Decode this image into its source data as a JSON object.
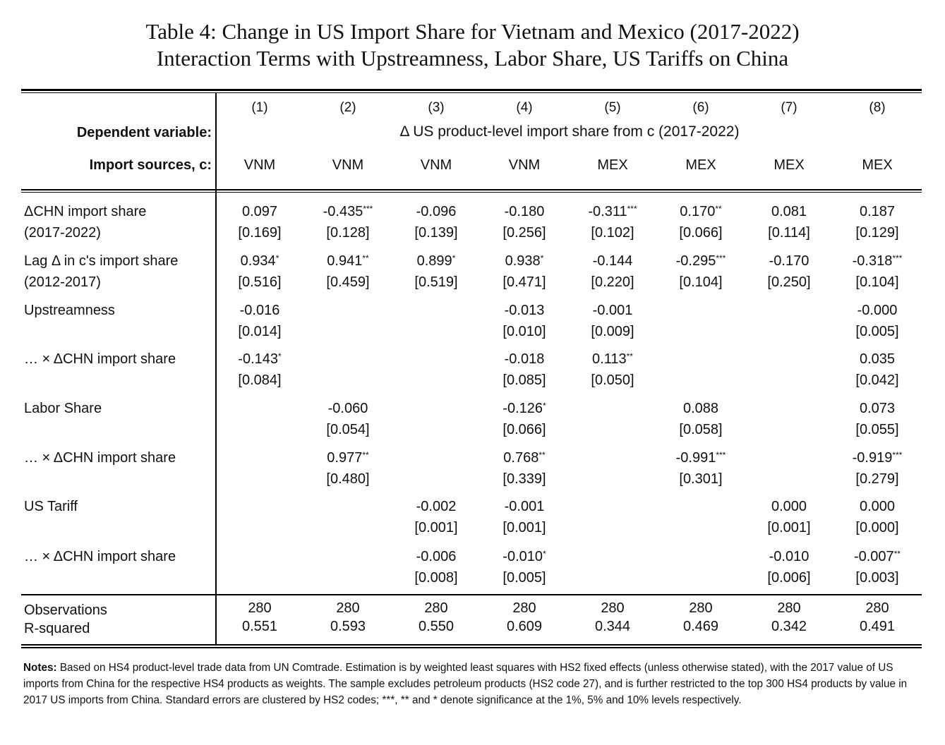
{
  "title_line1": "Table 4: Change in US Import Share for Vietnam and Mexico (2017-2022)",
  "title_line2": "Interaction Terms with Upstreamness, Labor Share, US Tariffs on China",
  "header": {
    "columns": [
      "(1)",
      "(2)",
      "(3)",
      "(4)",
      "(5)",
      "(6)",
      "(7)",
      "(8)"
    ],
    "dependent_label": "Dependent variable:",
    "dependent_value": "Δ US product-level import share from c (2017-2022)",
    "sources_label": "Import sources, c:",
    "sources": [
      "VNM",
      "VNM",
      "VNM",
      "VNM",
      "MEX",
      "MEX",
      "MEX",
      "MEX"
    ]
  },
  "rows": [
    {
      "label": [
        "ΔCHN import share",
        "(2017-2022)"
      ],
      "coef": [
        [
          "0.097",
          ""
        ],
        [
          "-0.435",
          "***"
        ],
        [
          "-0.096",
          ""
        ],
        [
          "-0.180",
          ""
        ],
        [
          "-0.311",
          "***"
        ],
        [
          "0.170",
          "**"
        ],
        [
          "0.081",
          ""
        ],
        [
          "0.187",
          ""
        ]
      ],
      "se": [
        "[0.169]",
        "[0.128]",
        "[0.139]",
        "[0.256]",
        "[0.102]",
        "[0.066]",
        "[0.114]",
        "[0.129]"
      ]
    },
    {
      "label": [
        "Lag Δ in c's import share",
        "(2012-2017)"
      ],
      "coef": [
        [
          "0.934",
          "*"
        ],
        [
          "0.941",
          "**"
        ],
        [
          "0.899",
          "*"
        ],
        [
          "0.938",
          "*"
        ],
        [
          "-0.144",
          ""
        ],
        [
          "-0.295",
          "***"
        ],
        [
          "-0.170",
          ""
        ],
        [
          "-0.318",
          "***"
        ]
      ],
      "se": [
        "[0.516]",
        "[0.459]",
        "[0.519]",
        "[0.471]",
        "[0.220]",
        "[0.104]",
        "[0.250]",
        "[0.104]"
      ]
    },
    {
      "label": [
        "Upstreamness",
        ""
      ],
      "coef": [
        [
          "-0.016",
          ""
        ],
        [
          "",
          ""
        ],
        [
          "",
          ""
        ],
        [
          "-0.013",
          ""
        ],
        [
          "-0.001",
          ""
        ],
        [
          "",
          ""
        ],
        [
          "",
          ""
        ],
        [
          "-0.000",
          ""
        ]
      ],
      "se": [
        "[0.014]",
        "",
        "",
        "[0.010]",
        "[0.009]",
        "",
        "",
        "[0.005]"
      ]
    },
    {
      "label": [
        "… × ΔCHN import share",
        ""
      ],
      "coef": [
        [
          "-0.143",
          "*"
        ],
        [
          "",
          ""
        ],
        [
          "",
          ""
        ],
        [
          "-0.018",
          ""
        ],
        [
          "0.113",
          "**"
        ],
        [
          "",
          ""
        ],
        [
          "",
          ""
        ],
        [
          "0.035",
          ""
        ]
      ],
      "se": [
        "[0.084]",
        "",
        "",
        "[0.085]",
        "[0.050]",
        "",
        "",
        "[0.042]"
      ]
    },
    {
      "label": [
        "Labor Share",
        ""
      ],
      "coef": [
        [
          "",
          ""
        ],
        [
          "-0.060",
          ""
        ],
        [
          "",
          ""
        ],
        [
          "-0.126",
          "*"
        ],
        [
          "",
          ""
        ],
        [
          "0.088",
          ""
        ],
        [
          "",
          ""
        ],
        [
          "0.073",
          ""
        ]
      ],
      "se": [
        "",
        "[0.054]",
        "",
        "[0.066]",
        "",
        "[0.058]",
        "",
        "[0.055]"
      ]
    },
    {
      "label": [
        "… × ΔCHN import share",
        ""
      ],
      "coef": [
        [
          "",
          ""
        ],
        [
          "0.977",
          "**"
        ],
        [
          "",
          ""
        ],
        [
          "0.768",
          "**"
        ],
        [
          "",
          ""
        ],
        [
          "-0.991",
          "***"
        ],
        [
          "",
          ""
        ],
        [
          "-0.919",
          "***"
        ]
      ],
      "se": [
        "",
        "[0.480]",
        "",
        "[0.339]",
        "",
        "[0.301]",
        "",
        "[0.279]"
      ]
    },
    {
      "label": [
        "US Tariff",
        ""
      ],
      "coef": [
        [
          "",
          ""
        ],
        [
          "",
          ""
        ],
        [
          "-0.002",
          ""
        ],
        [
          "-0.001",
          ""
        ],
        [
          "",
          ""
        ],
        [
          "",
          ""
        ],
        [
          "0.000",
          ""
        ],
        [
          "0.000",
          ""
        ]
      ],
      "se": [
        "",
        "",
        "[0.001]",
        "[0.001]",
        "",
        "",
        "[0.001]",
        "[0.000]"
      ]
    },
    {
      "label": [
        "… × ΔCHN import share",
        ""
      ],
      "coef": [
        [
          "",
          ""
        ],
        [
          "",
          ""
        ],
        [
          "-0.006",
          ""
        ],
        [
          "-0.010",
          "*"
        ],
        [
          "",
          ""
        ],
        [
          "",
          ""
        ],
        [
          "-0.010",
          ""
        ],
        [
          "-0.007",
          "**"
        ]
      ],
      "se": [
        "",
        "",
        "[0.008]",
        "[0.005]",
        "",
        "",
        "[0.006]",
        "[0.003]"
      ]
    }
  ],
  "stats": {
    "obs_label": "Observations",
    "obs": [
      "280",
      "280",
      "280",
      "280",
      "280",
      "280",
      "280",
      "280"
    ],
    "r2_label": "R-squared",
    "r2": [
      "0.551",
      "0.593",
      "0.550",
      "0.609",
      "0.344",
      "0.469",
      "0.342",
      "0.491"
    ]
  },
  "notes": {
    "lead": "Notes:",
    "text": " Based on HS4 product-level trade data from UN Comtrade. Estimation is by weighted least squares with HS2 fixed effects (unless otherwise stated), with the 2017 value of US imports from China for the respective HS4 products as weights. The sample excludes petroleum products (HS2 code 27), and is further restricted to the top 300 HS4 products by value in 2017 US imports from China. Standard errors are clustered by HS2 codes;  ***, ** and * denote significance at the 1%, 5% and 10% levels respectively."
  }
}
